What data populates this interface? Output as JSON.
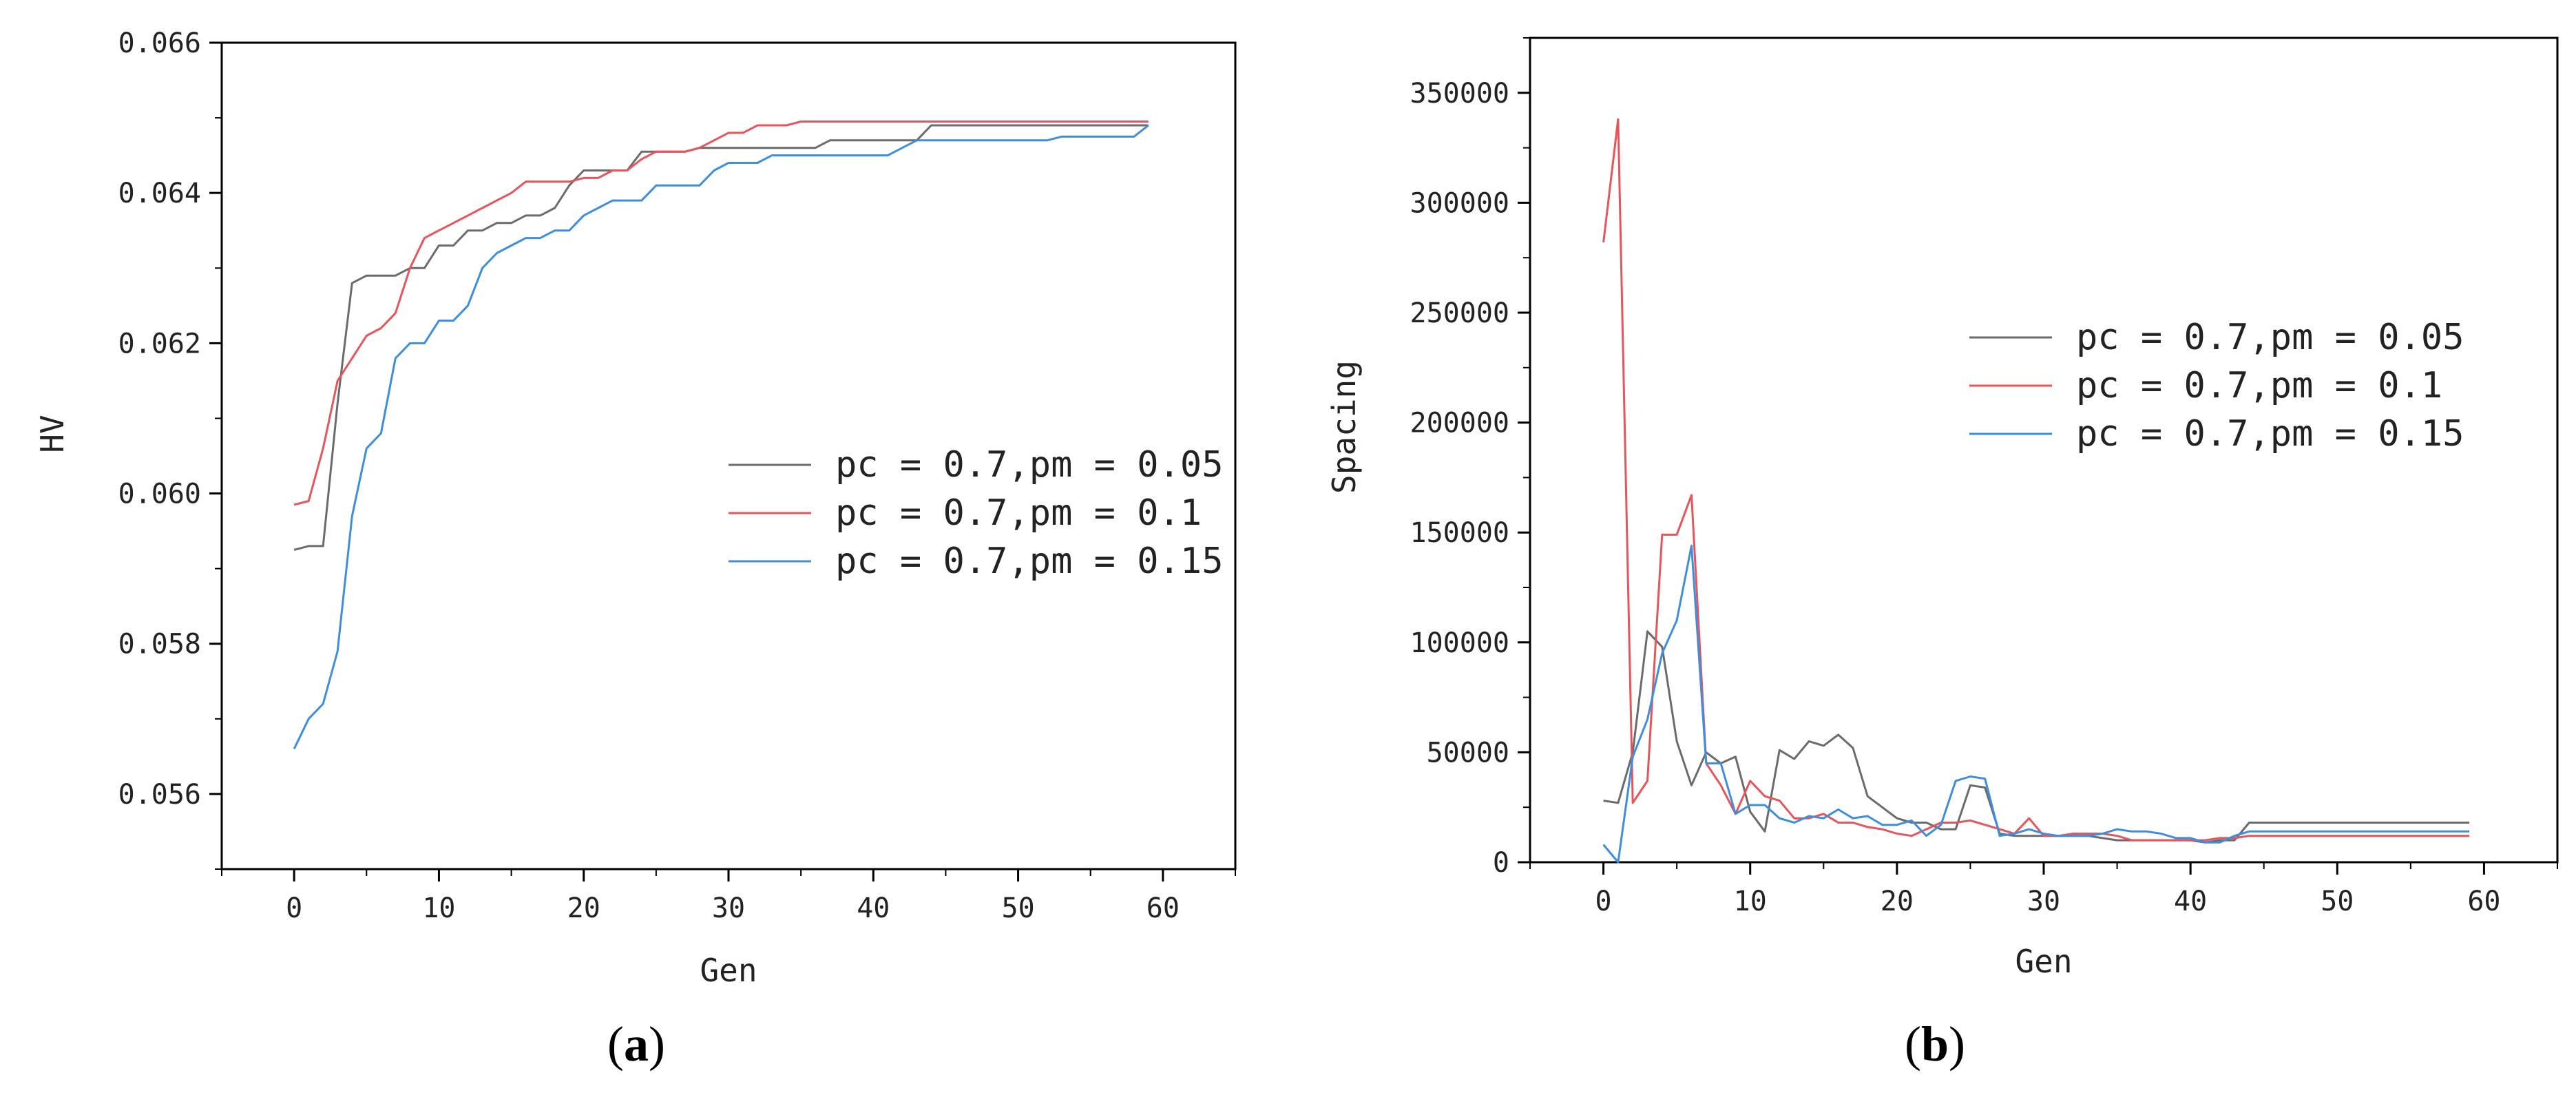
{
  "series_meta": [
    {
      "name": "pc = 0.7,pm = 0.05",
      "color": "#6b6b6b"
    },
    {
      "name": "pc = 0.7,pm = 0.1",
      "color": "#e8545a"
    },
    {
      "name": "pc = 0.7,pm = 0.15",
      "color": "#3e8ee0"
    }
  ],
  "panel_labels": {
    "a_open": "(",
    "a_letter": "a",
    "a_close": ")",
    "b_open": "(",
    "b_letter": "b",
    "b_close": ")"
  },
  "chart_data": [
    {
      "type": "line",
      "panel": "a",
      "xlabel": "Gen",
      "ylabel": "HV",
      "xlim": [
        -5,
        65
      ],
      "ylim": [
        0.055,
        0.066
      ],
      "xticks": [
        0,
        10,
        20,
        30,
        40,
        50,
        60
      ],
      "yticks": [
        0.056,
        0.058,
        0.06,
        0.062,
        0.064,
        0.066
      ],
      "ytick_labels": [
        "0.056",
        "0.058",
        "0.060",
        "0.062",
        "0.064",
        "0.066"
      ],
      "legend": "center-right",
      "series": [
        {
          "name": "pc = 0.7,pm = 0.05",
          "x": [
            0,
            1,
            2,
            3,
            4,
            5,
            6,
            7,
            8,
            9,
            10,
            11,
            12,
            13,
            14,
            15,
            16,
            17,
            18,
            19,
            20,
            21,
            22,
            23,
            24,
            25,
            26,
            27,
            28,
            29,
            30,
            31,
            32,
            33,
            34,
            35,
            36,
            37,
            38,
            39,
            40,
            41,
            42,
            43,
            44,
            45,
            46,
            47,
            48,
            49,
            50,
            51,
            52,
            53,
            54,
            55,
            56,
            57,
            58,
            59
          ],
          "y": [
            0.05925,
            0.0593,
            0.0593,
            0.0612,
            0.0628,
            0.0629,
            0.0629,
            0.0629,
            0.063,
            0.063,
            0.0633,
            0.0633,
            0.0635,
            0.0635,
            0.0636,
            0.0636,
            0.0637,
            0.0637,
            0.0638,
            0.0641,
            0.0643,
            0.0643,
            0.0643,
            0.0643,
            0.06455,
            0.06455,
            0.06455,
            0.06455,
            0.0646,
            0.0646,
            0.0646,
            0.0646,
            0.0646,
            0.0646,
            0.0646,
            0.0646,
            0.0646,
            0.0647,
            0.0647,
            0.0647,
            0.0647,
            0.0647,
            0.0647,
            0.0647,
            0.0649,
            0.0649,
            0.0649,
            0.0649,
            0.0649,
            0.0649,
            0.0649,
            0.0649,
            0.0649,
            0.0649,
            0.0649,
            0.0649,
            0.0649,
            0.0649,
            0.0649,
            0.0649
          ]
        },
        {
          "name": "pc = 0.7,pm = 0.1",
          "x": [
            0,
            1,
            2,
            3,
            4,
            5,
            6,
            7,
            8,
            9,
            10,
            11,
            12,
            13,
            14,
            15,
            16,
            17,
            18,
            19,
            20,
            21,
            22,
            23,
            24,
            25,
            26,
            27,
            28,
            29,
            30,
            31,
            32,
            33,
            34,
            35,
            36,
            37,
            38,
            39,
            40,
            41,
            42,
            43,
            44,
            45,
            46,
            47,
            48,
            49,
            50,
            51,
            52,
            53,
            54,
            55,
            56,
            57,
            58,
            59
          ],
          "y": [
            0.05985,
            0.0599,
            0.0606,
            0.0615,
            0.0618,
            0.0621,
            0.0622,
            0.0624,
            0.063,
            0.0634,
            0.0635,
            0.0636,
            0.0637,
            0.0638,
            0.0639,
            0.064,
            0.06415,
            0.06415,
            0.06415,
            0.06415,
            0.0642,
            0.0642,
            0.0643,
            0.0643,
            0.06445,
            0.06455,
            0.06455,
            0.06455,
            0.0646,
            0.0647,
            0.0648,
            0.0648,
            0.0649,
            0.0649,
            0.0649,
            0.06495,
            0.06495,
            0.06495,
            0.06495,
            0.06495,
            0.06495,
            0.06495,
            0.06495,
            0.06495,
            0.06495,
            0.06495,
            0.06495,
            0.06495,
            0.06495,
            0.06495,
            0.06495,
            0.06495,
            0.06495,
            0.06495,
            0.06495,
            0.06495,
            0.06495,
            0.06495,
            0.06495,
            0.06495
          ]
        },
        {
          "name": "pc = 0.7,pm = 0.15",
          "x": [
            0,
            1,
            2,
            3,
            4,
            5,
            6,
            7,
            8,
            9,
            10,
            11,
            12,
            13,
            14,
            15,
            16,
            17,
            18,
            19,
            20,
            21,
            22,
            23,
            24,
            25,
            26,
            27,
            28,
            29,
            30,
            31,
            32,
            33,
            34,
            35,
            36,
            37,
            38,
            39,
            40,
            41,
            42,
            43,
            44,
            45,
            46,
            47,
            48,
            49,
            50,
            51,
            52,
            53,
            54,
            55,
            56,
            57,
            58,
            59
          ],
          "y": [
            0.0566,
            0.057,
            0.0572,
            0.0579,
            0.0597,
            0.0606,
            0.0608,
            0.0618,
            0.062,
            0.062,
            0.0623,
            0.0623,
            0.0625,
            0.063,
            0.0632,
            0.0633,
            0.0634,
            0.0634,
            0.0635,
            0.0635,
            0.0637,
            0.0638,
            0.0639,
            0.0639,
            0.0639,
            0.0641,
            0.0641,
            0.0641,
            0.0641,
            0.0643,
            0.0644,
            0.0644,
            0.0644,
            0.0645,
            0.0645,
            0.0645,
            0.0645,
            0.0645,
            0.0645,
            0.0645,
            0.0645,
            0.0645,
            0.0646,
            0.0647,
            0.0647,
            0.0647,
            0.0647,
            0.0647,
            0.0647,
            0.0647,
            0.0647,
            0.0647,
            0.0647,
            0.06475,
            0.06475,
            0.06475,
            0.06475,
            0.06475,
            0.06475,
            0.0649
          ]
        }
      ]
    },
    {
      "type": "line",
      "panel": "b",
      "xlabel": "Gen",
      "ylabel": "Spacing",
      "xlim": [
        -5,
        65
      ],
      "ylim": [
        0,
        375000
      ],
      "xticks": [
        0,
        10,
        20,
        30,
        40,
        50,
        60
      ],
      "yticks": [
        0,
        50000,
        100000,
        150000,
        200000,
        250000,
        300000,
        350000
      ],
      "ytick_labels": [
        "0",
        "50000",
        "100000",
        "150000",
        "200000",
        "250000",
        "300000",
        "350000"
      ],
      "legend": "top-right",
      "series": [
        {
          "name": "pc = 0.7,pm = 0.05",
          "x": [
            0,
            1,
            2,
            3,
            4,
            5,
            6,
            7,
            8,
            9,
            10,
            11,
            12,
            13,
            14,
            15,
            16,
            17,
            18,
            19,
            20,
            21,
            22,
            23,
            24,
            25,
            26,
            27,
            28,
            29,
            30,
            31,
            32,
            33,
            34,
            35,
            36,
            37,
            38,
            39,
            40,
            41,
            42,
            43,
            44,
            45,
            46,
            47,
            48,
            49,
            50,
            51,
            52,
            53,
            54,
            55,
            56,
            57,
            58,
            59
          ],
          "y": [
            28000,
            27000,
            50000,
            105000,
            98000,
            55000,
            35000,
            50000,
            45000,
            48000,
            23000,
            14000,
            51000,
            47000,
            55000,
            53000,
            58000,
            52000,
            30000,
            25000,
            20000,
            18000,
            18000,
            15000,
            15000,
            35000,
            34000,
            13000,
            12000,
            12000,
            12000,
            12000,
            12000,
            12000,
            11000,
            10000,
            10000,
            10000,
            10000,
            10000,
            10000,
            9000,
            10000,
            10000,
            18000,
            18000,
            18000,
            18000,
            18000,
            18000,
            18000,
            18000,
            18000,
            18000,
            18000,
            18000,
            18000,
            18000,
            18000,
            18000
          ]
        },
        {
          "name": "pc = 0.7,pm = 0.1",
          "x": [
            0,
            1,
            2,
            3,
            4,
            5,
            6,
            7,
            8,
            9,
            10,
            11,
            12,
            13,
            14,
            15,
            16,
            17,
            18,
            19,
            20,
            21,
            22,
            23,
            24,
            25,
            26,
            27,
            28,
            29,
            30,
            31,
            32,
            33,
            34,
            35,
            36,
            37,
            38,
            39,
            40,
            41,
            42,
            43,
            44,
            45,
            46,
            47,
            48,
            49,
            50,
            51,
            52,
            53,
            54,
            55,
            56,
            57,
            58,
            59
          ],
          "y": [
            282000,
            338000,
            27000,
            37000,
            149000,
            149000,
            167000,
            45000,
            35000,
            22000,
            37000,
            30000,
            28000,
            20000,
            20000,
            22000,
            18000,
            18000,
            16000,
            15000,
            13000,
            12000,
            15000,
            18000,
            18000,
            19000,
            17000,
            15000,
            13000,
            20000,
            12000,
            12000,
            13000,
            13000,
            13000,
            12000,
            10000,
            10000,
            10000,
            10000,
            10000,
            10000,
            11000,
            11000,
            12000,
            12000,
            12000,
            12000,
            12000,
            12000,
            12000,
            12000,
            12000,
            12000,
            12000,
            12000,
            12000,
            12000,
            12000,
            12000
          ]
        },
        {
          "name": "pc = 0.7,pm = 0.15",
          "x": [
            0,
            1,
            2,
            3,
            4,
            5,
            6,
            7,
            8,
            9,
            10,
            11,
            12,
            13,
            14,
            15,
            16,
            17,
            18,
            19,
            20,
            21,
            22,
            23,
            24,
            25,
            26,
            27,
            28,
            29,
            30,
            31,
            32,
            33,
            34,
            35,
            36,
            37,
            38,
            39,
            40,
            41,
            42,
            43,
            44,
            45,
            46,
            47,
            48,
            49,
            50,
            51,
            52,
            53,
            54,
            55,
            56,
            57,
            58,
            59
          ],
          "y": [
            8000,
            0,
            48000,
            65000,
            95000,
            110000,
            144000,
            45000,
            45000,
            22000,
            26000,
            26000,
            20000,
            18000,
            21000,
            20000,
            24000,
            20000,
            21000,
            17000,
            17000,
            19000,
            12000,
            17000,
            37000,
            39000,
            38000,
            12000,
            13000,
            15000,
            13000,
            12000,
            12000,
            12000,
            13000,
            15000,
            14000,
            14000,
            13000,
            11000,
            11000,
            9000,
            9000,
            12000,
            14000,
            14000,
            14000,
            14000,
            14000,
            14000,
            14000,
            14000,
            14000,
            14000,
            14000,
            14000,
            14000,
            14000,
            14000,
            14000
          ]
        }
      ]
    }
  ]
}
